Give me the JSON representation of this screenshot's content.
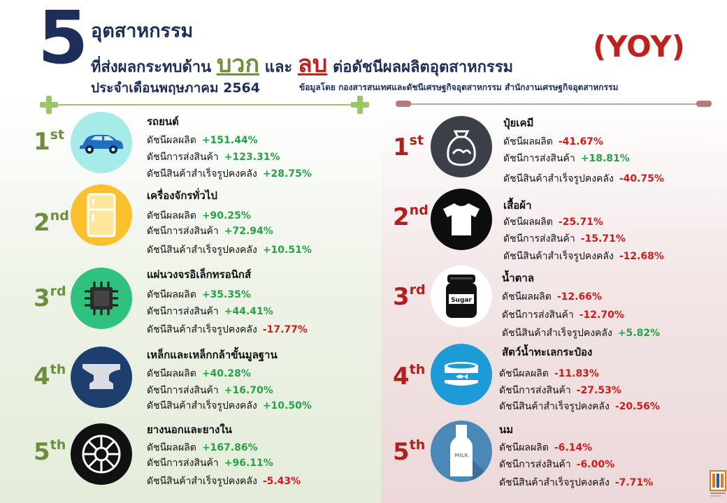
{
  "header": {
    "number": "5",
    "line1": "อุตสาหกรรม",
    "line2_prefix": "ที่ส่งผลกระทบด้าน",
    "positive_word": "บวก",
    "and_word": "และ",
    "negative_word": "ลบ",
    "line2_suffix": "ต่อดัชนีผลผลิตอุตสาหกรรม",
    "line3": "ประจำเดือนพฤษภาคม 2564",
    "yoy": "(YOY)",
    "source": "ข้อมูลโดย กองสารสนเทศและดัชนีเศรษฐกิจอุตสาหกรรม สำนักงานเศรษฐกิจอุตสาหกรรม"
  },
  "metric_labels": {
    "production": "ดัชนีผลผลิต",
    "shipment": "ดัชนีการส่งสินค้า",
    "inventory": "ดัชนีสินค้าสำเร็จรูปคงคลัง"
  },
  "positive": [
    {
      "rank": "1",
      "suffix": "st",
      "name": "รถยนต์",
      "icon": "car-icon",
      "circle_color": "#a7ebe8",
      "production": "+151.44%",
      "shipment": "+123.31%",
      "inventory": "+28.75%"
    },
    {
      "rank": "2",
      "suffix": "nd",
      "name": "เครื่องจักรทั่วไป",
      "icon": "refrigerator-icon",
      "circle_color": "#fbc02d",
      "production": "+90.25%",
      "shipment": "+72.94%",
      "inventory": "+10.51%"
    },
    {
      "rank": "3",
      "suffix": "rd",
      "name": "แผ่นวงจรอิเล็กทรอนิกส์",
      "icon": "chip-icon",
      "circle_color": "#2ec27e",
      "production": "+35.35%",
      "shipment": "+44.41%",
      "inventory": "-17.77%"
    },
    {
      "rank": "4",
      "suffix": "th",
      "name": "เหล็กและเหล็กกล้าขั้นมูลฐาน",
      "icon": "anvil-icon",
      "circle_color": "#1e3f6e",
      "production": "+40.28%",
      "shipment": "+16.70%",
      "inventory": "+10.50%"
    },
    {
      "rank": "5",
      "suffix": "th",
      "name": "ยางนอกและยางใน",
      "icon": "tire-icon",
      "circle_color": "#111111",
      "production": "+167.86%",
      "shipment": "+96.11%",
      "inventory": "-5.43%"
    }
  ],
  "negative": [
    {
      "rank": "1",
      "suffix": "st",
      "name": "ปุ๋ยเคมี",
      "icon": "fertilizer-bag-icon",
      "circle_color": "#3b3f47",
      "production": "-41.67%",
      "shipment": "+18.81%",
      "inventory": "-40.75%"
    },
    {
      "rank": "2",
      "suffix": "nd",
      "name": "เสื้อผ้า",
      "icon": "tshirt-icon",
      "circle_color": "#0d0d0d",
      "production": "-25.71%",
      "shipment": "-15.71%",
      "inventory": "-12.68%"
    },
    {
      "rank": "3",
      "suffix": "rd",
      "name": "น้ำตาล",
      "icon": "sugar-jar-icon",
      "circle_color": "#ffffff",
      "production": "-12.66%",
      "shipment": "-12.70%",
      "inventory": "+5.82%",
      "jar_label": "Sugar"
    },
    {
      "rank": "4",
      "suffix": "th",
      "name": "สัตว์น้ำทะเลกระป๋อง",
      "icon": "canned-fish-icon",
      "circle_color": "#1e9ad6",
      "production": "-11.83%",
      "shipment": "-27.53%",
      "inventory": "-20.56%"
    },
    {
      "rank": "5",
      "suffix": "th",
      "name": "นม",
      "icon": "milk-bottle-icon",
      "circle_color": "#4a88b8",
      "production": "-6.14%",
      "shipment": "-6.00%",
      "inventory": "-7.71%",
      "bottle_label": "MILK"
    }
  ],
  "colors": {
    "navy": "#1f2d5a",
    "positive_green": "#25a244",
    "negative_red": "#d11a1a",
    "rank_green": "#6b8f3a",
    "rank_red": "#b2201e"
  }
}
